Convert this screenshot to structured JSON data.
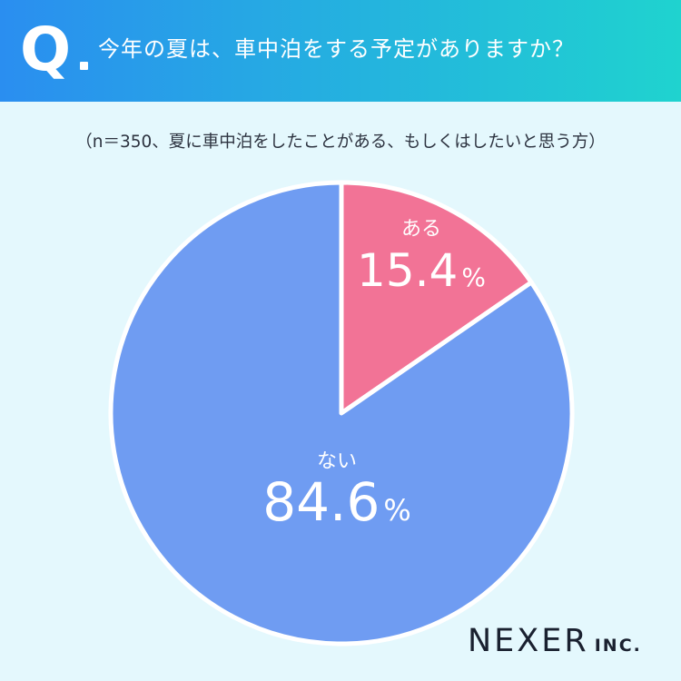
{
  "header": {
    "q_mark": "Q",
    "question": "今年の夏は、車中泊をする予定がありますか？"
  },
  "subtitle": "（n＝350、夏に車中泊をしたことがある、もしくはしたいと思う方）",
  "colors": {
    "background": "#e4f8fd",
    "header_start": "#2a8ef0",
    "header_end": "#1fd3cf",
    "slice_aru": "#f27396",
    "slice_nai": "#6f9cf2",
    "slice_border": "#ffffff"
  },
  "chart_data": {
    "type": "pie",
    "categories": [
      "ある",
      "ない"
    ],
    "values": [
      15.4,
      84.6
    ],
    "unit": "%",
    "start_angle": "12 o'clock",
    "direction": "clockwise"
  },
  "logo": {
    "main": "NEXER",
    "sub": "INC."
  }
}
